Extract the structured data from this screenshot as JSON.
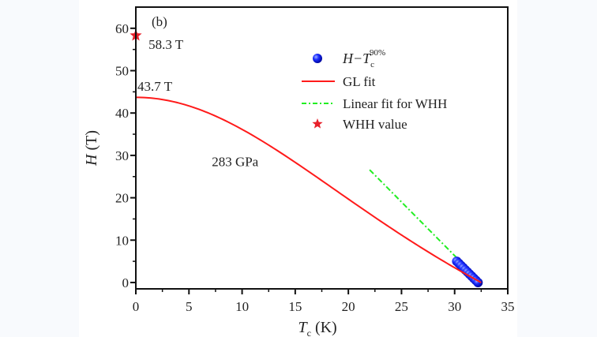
{
  "chart_data": {
    "type": "line",
    "panel_label": "(b)",
    "xlabel": "T_c (K)",
    "xlabel_main": "T",
    "xlabel_sub": "c",
    "xlabel_unit": " (K)",
    "ylabel": "H (T)",
    "ylabel_main": "H",
    "ylabel_unit": " (T)",
    "xlim": [
      0,
      35
    ],
    "ylim": [
      -1.5,
      65
    ],
    "xticks": [
      0,
      5,
      10,
      15,
      20,
      25,
      30,
      35
    ],
    "yticks": [
      0,
      10,
      20,
      30,
      40,
      50,
      60
    ],
    "annotations": [
      {
        "text": "58.3 T",
        "x": 0.6,
        "y": 55.5
      },
      {
        "text": "43.7 T",
        "x": 0.0,
        "y": 45.3
      },
      {
        "text": "283 GPa",
        "x": 7.0,
        "y": 27.5
      }
    ],
    "legend_position": "top-right",
    "series": [
      {
        "name": "H−Tc^90%",
        "legend_main": "H−T",
        "legend_sub": "c",
        "legend_sup": "90%",
        "kind": "scatter",
        "color": "#0a14e6",
        "x": [
          30.2,
          30.4,
          30.6,
          30.8,
          31.0,
          31.2,
          31.4,
          31.6,
          31.8,
          32.0,
          32.2
        ],
        "y": [
          5.0,
          4.5,
          4.0,
          3.5,
          3.0,
          2.5,
          2.0,
          1.5,
          1.0,
          0.5,
          0.0
        ]
      },
      {
        "name": "GL fit",
        "kind": "line",
        "color": "#ff1a1a",
        "H0": 43.7,
        "Tc": 32.5,
        "formula": "H0*(1-(T/Tc)^2)/(1+(T/Tc)^2)"
      },
      {
        "name": "Linear fit for WHH",
        "kind": "dashdot",
        "color": "#22ee22",
        "x": [
          22.0,
          32.5
        ],
        "y": [
          26.6,
          0.0
        ]
      },
      {
        "name": "WHH value",
        "kind": "star",
        "color": "#e8202a",
        "x": [
          0
        ],
        "y": [
          58.3
        ]
      }
    ]
  }
}
